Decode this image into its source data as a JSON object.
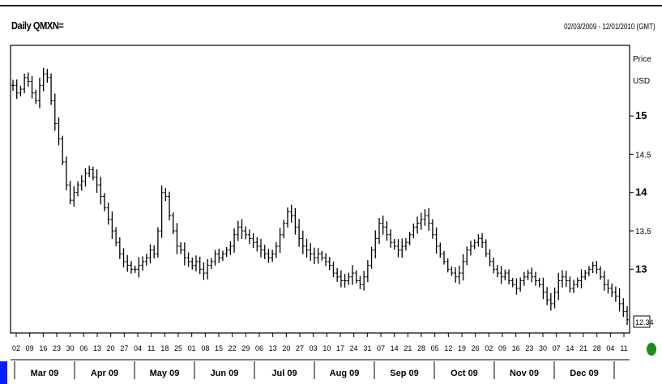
{
  "header": {
    "title": "Daily QMXN=",
    "date_range": "02/03/2009 - 12/01/2010 (GMT)"
  },
  "colors": {
    "price_line": "#000000",
    "frame": "#000000",
    "accent_tab": "#0a1fff",
    "status_dot": "#1a8f1a"
  },
  "chart_data": {
    "type": "line",
    "style": "ohlc-bars",
    "title": "Daily QMXN=",
    "ylabel": "Price",
    "unit": "USD",
    "ylim": [
      12.2,
      15.9
    ],
    "ytick_labels": [
      "15",
      "14.5",
      "14",
      "13.5",
      "13"
    ],
    "last_value_label": "12.34",
    "x_day_labels": [
      "02",
      "09",
      "16",
      "23",
      "30",
      "06",
      "13",
      "20",
      "27",
      "04",
      "11",
      "18",
      "25",
      "01",
      "08",
      "15",
      "22",
      "29",
      "06",
      "13",
      "20",
      "27",
      "03",
      "10",
      "17",
      "24",
      "31",
      "07",
      "14",
      "21",
      "28",
      "05",
      "12",
      "19",
      "26",
      "02",
      "09",
      "16",
      "23",
      "30",
      "07",
      "14",
      "21",
      "28",
      "04",
      "11"
    ],
    "x_month_labels": [
      "Mar 09",
      "Apr 09",
      "May 09",
      "Jun 09",
      "Jul 09",
      "Aug 09",
      "Sep 09",
      "Oct 09",
      "Nov 09",
      "Dec 09"
    ],
    "series": [
      {
        "values": [
          15.4,
          15.3,
          15.35,
          15.5,
          15.45,
          15.3,
          15.2,
          15.4,
          15.55,
          15.5,
          15.2,
          14.9,
          14.7,
          14.4,
          14.1,
          13.9,
          14.0,
          14.1,
          14.15,
          14.25,
          14.3,
          14.2,
          14.1,
          13.95,
          13.8,
          13.65,
          13.5,
          13.35,
          13.2,
          13.1,
          13.05,
          13.0,
          13.0,
          13.05,
          13.1,
          13.15,
          13.25,
          13.2,
          13.5,
          14.0,
          13.95,
          13.7,
          13.5,
          13.3,
          13.25,
          13.15,
          13.1,
          13.05,
          13.1,
          13.0,
          12.95,
          13.05,
          13.1,
          13.2,
          13.15,
          13.2,
          13.25,
          13.3,
          13.45,
          13.55,
          13.5,
          13.45,
          13.4,
          13.35,
          13.3,
          13.25,
          13.2,
          13.15,
          13.2,
          13.3,
          13.45,
          13.6,
          13.75,
          13.7,
          13.55,
          13.4,
          13.3,
          13.25,
          13.2,
          13.15,
          13.2,
          13.15,
          13.1,
          13.05,
          12.95,
          12.9,
          12.85,
          12.85,
          12.9,
          12.95,
          12.85,
          12.8,
          12.9,
          13.05,
          13.25,
          13.4,
          13.6,
          13.55,
          13.45,
          13.35,
          13.3,
          13.25,
          13.3,
          13.35,
          13.45,
          13.55,
          13.6,
          13.65,
          13.7,
          13.6,
          13.45,
          13.3,
          13.2,
          13.1,
          13.0,
          12.95,
          12.9,
          12.95,
          13.1,
          13.25,
          13.3,
          13.35,
          13.4,
          13.35,
          13.2,
          13.1,
          13.0,
          12.95,
          12.9,
          12.95,
          12.85,
          12.8,
          12.75,
          12.85,
          12.9,
          12.95,
          12.9,
          12.85,
          12.8,
          12.7,
          12.6,
          12.55,
          12.7,
          12.85,
          12.9,
          12.85,
          12.75,
          12.8,
          12.85,
          12.9,
          12.95,
          13.0,
          13.05,
          13.0,
          12.9,
          12.8,
          12.75,
          12.7,
          12.65,
          12.55,
          12.45,
          12.34
        ]
      }
    ]
  }
}
